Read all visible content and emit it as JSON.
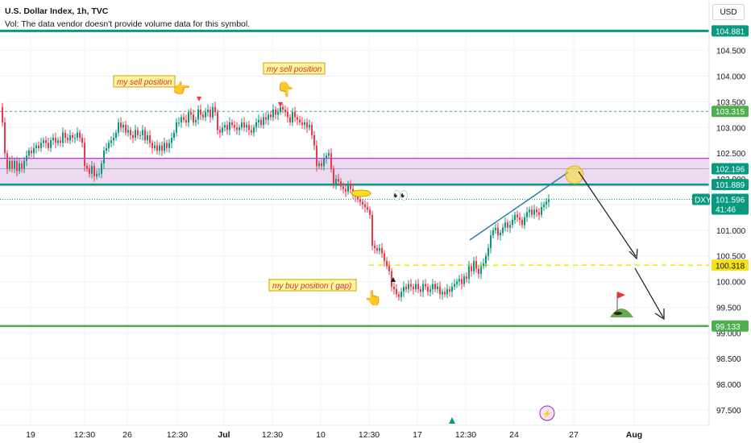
{
  "header": {
    "title": "U.S. Dollar Index, 1h, TVC",
    "volume_note": "Vol: The data vendor doesn't provide volume data for this symbol."
  },
  "currency_button": "USD",
  "price_axis": {
    "ticks": [
      "104.500",
      "104.000",
      "103.500",
      "103.000",
      "102.500",
      "102.000",
      "101.500",
      "101.000",
      "100.500",
      "100.000",
      "99.500",
      "99.000",
      "98.500",
      "98.000",
      "97.500"
    ]
  },
  "time_axis": {
    "labels": [
      "19",
      "12:30",
      "26",
      "12:30",
      "Jul",
      "12:30",
      "10",
      "12:30",
      "17",
      "12:30",
      "24",
      "27",
      "Aug"
    ]
  },
  "price_labels": {
    "top_line": "104.881",
    "dashed_resist": "103.315",
    "zone_top": "102.196",
    "zone_bottom": "101.889",
    "current_symbol": "DXY",
    "current_price": "101.596",
    "current_countdown": "41:46",
    "target_1": "100.318",
    "target_2": "99.133"
  },
  "annotations": {
    "sell_1": "my sell position",
    "sell_2": "my sell position",
    "buy": "my buy position ( gap)"
  },
  "colors": {
    "green_line": "#089981",
    "support_line": "#4caf50",
    "zone_fill": "#e9d4ef",
    "zone_border": "#b545c9",
    "candle_up": "#089981",
    "candle_down": "#f23645",
    "yellow": "#f5e01a",
    "trend_line": "#2a7fa8"
  },
  "chart_data": {
    "type": "candlestick",
    "symbol": "DXY",
    "timeframe": "1h",
    "ylim": [
      97.2,
      104.95
    ],
    "horizontal_levels": [
      104.881,
      103.315,
      102.196,
      101.889,
      100.318,
      99.133
    ],
    "highlight_zone": [
      101.85,
      102.4
    ],
    "close_path": [
      [
        0,
        103.4
      ],
      [
        3,
        103.1
      ],
      [
        6,
        102.5
      ],
      [
        9,
        102.2
      ],
      [
        12,
        102.35
      ],
      [
        15,
        102.2
      ],
      [
        18,
        102.35
      ],
      [
        21,
        102.15
      ],
      [
        24,
        102.3
      ],
      [
        27,
        102.2
      ],
      [
        30,
        102.35
      ],
      [
        33,
        102.45
      ],
      [
        36,
        102.55
      ],
      [
        39,
        102.5
      ],
      [
        42,
        102.6
      ],
      [
        45,
        102.65
      ],
      [
        48,
        102.6
      ],
      [
        51,
        102.7
      ],
      [
        54,
        102.75
      ],
      [
        57,
        102.7
      ],
      [
        60,
        102.6
      ],
      [
        63,
        102.75
      ],
      [
        66,
        102.8
      ],
      [
        69,
        102.7
      ],
      [
        72,
        102.75
      ],
      [
        75,
        102.7
      ],
      [
        78,
        102.9
      ],
      [
        81,
        102.8
      ],
      [
        84,
        102.75
      ],
      [
        87,
        102.85
      ],
      [
        90,
        102.8
      ],
      [
        93,
        102.8
      ],
      [
        96,
        102.9
      ],
      [
        99,
        102.8
      ],
      [
        102,
        102.7
      ],
      [
        105,
        102.25
      ],
      [
        108,
        102.2
      ],
      [
        111,
        102.1
      ],
      [
        114,
        102.25
      ],
      [
        117,
        102.05
      ],
      [
        120,
        102.1
      ],
      [
        123,
        102.1
      ],
      [
        126,
        102.3
      ],
      [
        129,
        102.55
      ],
      [
        132,
        102.6
      ],
      [
        135,
        102.7
      ],
      [
        138,
        102.75
      ],
      [
        141,
        102.8
      ],
      [
        144,
        102.9
      ],
      [
        147,
        103.1
      ],
      [
        150,
        103.0
      ],
      [
        153,
        103.05
      ],
      [
        156,
        102.9
      ],
      [
        159,
        102.95
      ],
      [
        162,
        102.85
      ],
      [
        165,
        102.8
      ],
      [
        168,
        102.95
      ],
      [
        171,
        102.85
      ],
      [
        174,
        102.85
      ],
      [
        177,
        102.95
      ],
      [
        180,
        102.75
      ],
      [
        183,
        102.85
      ],
      [
        186,
        102.7
      ],
      [
        189,
        102.6
      ],
      [
        192,
        102.65
      ],
      [
        195,
        102.55
      ],
      [
        198,
        102.65
      ],
      [
        201,
        102.55
      ],
      [
        204,
        102.7
      ],
      [
        207,
        102.6
      ],
      [
        210,
        102.7
      ],
      [
        213,
        102.8
      ],
      [
        216,
        102.9
      ],
      [
        219,
        103.1
      ],
      [
        222,
        103.1
      ],
      [
        225,
        103.2
      ],
      [
        228,
        103.15
      ],
      [
        231,
        103.1
      ],
      [
        234,
        103.3
      ],
      [
        237,
        103.25
      ],
      [
        240,
        103.1
      ],
      [
        243,
        103.15
      ],
      [
        246,
        103.35
      ],
      [
        249,
        103.25
      ],
      [
        252,
        103.2
      ],
      [
        255,
        103.3
      ],
      [
        258,
        103.35
      ],
      [
        261,
        103.2
      ],
      [
        264,
        103.4
      ],
      [
        267,
        103.3
      ],
      [
        270,
        102.95
      ],
      [
        273,
        102.9
      ],
      [
        276,
        103.0
      ],
      [
        279,
        103.05
      ],
      [
        282,
        102.95
      ],
      [
        285,
        103.1
      ],
      [
        288,
        103.05
      ],
      [
        291,
        103.0
      ],
      [
        294,
        102.95
      ],
      [
        297,
        103.0
      ],
      [
        300,
        103.1
      ],
      [
        303,
        103.0
      ],
      [
        306,
        103.05
      ],
      [
        309,
        102.95
      ],
      [
        312,
        102.9
      ],
      [
        315,
        103.0
      ],
      [
        318,
        103.1
      ],
      [
        321,
        103.15
      ],
      [
        324,
        103.05
      ],
      [
        327,
        103.2
      ],
      [
        330,
        103.15
      ],
      [
        333,
        103.25
      ],
      [
        336,
        103.2
      ],
      [
        339,
        103.35
      ],
      [
        342,
        103.25
      ],
      [
        345,
        103.3
      ],
      [
        348,
        103.4
      ],
      [
        351,
        103.35
      ],
      [
        354,
        103.3
      ],
      [
        357,
        103.2
      ],
      [
        360,
        103.1
      ],
      [
        363,
        103.3
      ],
      [
        366,
        103.2
      ],
      [
        369,
        103.15
      ],
      [
        372,
        103.1
      ],
      [
        375,
        103.05
      ],
      [
        378,
        103.1
      ],
      [
        381,
        103.0
      ],
      [
        384,
        103.05
      ],
      [
        387,
        102.85
      ],
      [
        390,
        102.65
      ],
      [
        393,
        102.25
      ],
      [
        396,
        102.3
      ],
      [
        399,
        102.25
      ],
      [
        402,
        102.4
      ],
      [
        405,
        102.45
      ],
      [
        408,
        102.5
      ],
      [
        411,
        102.2
      ],
      [
        414,
        101.9
      ],
      [
        417,
        102.0
      ],
      [
        420,
        101.95
      ],
      [
        423,
        101.85
      ],
      [
        426,
        101.8
      ],
      [
        429,
        101.75
      ],
      [
        432,
        101.9
      ],
      [
        435,
        101.8
      ],
      [
        438,
        101.7
      ],
      [
        441,
        101.65
      ],
      [
        444,
        101.6
      ],
      [
        447,
        101.55
      ],
      [
        450,
        101.5
      ],
      [
        453,
        101.45
      ],
      [
        456,
        101.4
      ],
      [
        459,
        101.3
      ],
      [
        462,
        100.7
      ],
      [
        465,
        100.65
      ],
      [
        468,
        100.6
      ],
      [
        471,
        100.65
      ],
      [
        474,
        100.55
      ],
      [
        477,
        100.4
      ],
      [
        480,
        100.3
      ],
      [
        483,
        100.2
      ],
      [
        486,
        99.9
      ],
      [
        489,
        99.85
      ],
      [
        492,
        99.75
      ],
      [
        495,
        99.7
      ],
      [
        498,
        99.8
      ],
      [
        501,
        99.9
      ],
      [
        504,
        99.85
      ],
      [
        507,
        99.95
      ],
      [
        510,
        99.9
      ],
      [
        513,
        99.85
      ],
      [
        516,
        99.95
      ],
      [
        519,
        99.85
      ],
      [
        522,
        99.8
      ],
      [
        525,
        99.95
      ],
      [
        528,
        99.9
      ],
      [
        531,
        99.8
      ],
      [
        534,
        99.85
      ],
      [
        537,
        99.95
      ],
      [
        540,
        99.85
      ],
      [
        543,
        99.9
      ],
      [
        546,
        99.75
      ],
      [
        549,
        99.8
      ],
      [
        552,
        99.75
      ],
      [
        555,
        99.85
      ],
      [
        558,
        99.8
      ],
      [
        561,
        99.9
      ],
      [
        564,
        99.95
      ],
      [
        567,
        100.0
      ],
      [
        570,
        100.05
      ],
      [
        573,
        99.95
      ],
      [
        576,
        100.1
      ],
      [
        579,
        100.05
      ],
      [
        582,
        100.3
      ],
      [
        585,
        100.2
      ],
      [
        588,
        100.4
      ],
      [
        591,
        100.25
      ],
      [
        594,
        100.15
      ],
      [
        597,
        100.3
      ],
      [
        600,
        100.35
      ],
      [
        603,
        100.5
      ],
      [
        606,
        100.65
      ],
      [
        609,
        100.9
      ],
      [
        612,
        101.0
      ],
      [
        615,
        101.05
      ],
      [
        618,
        100.9
      ],
      [
        621,
        100.95
      ],
      [
        624,
        101.05
      ],
      [
        627,
        101.15
      ],
      [
        630,
        101.05
      ],
      [
        633,
        101.1
      ],
      [
        636,
        101.2
      ],
      [
        639,
        101.3
      ],
      [
        642,
        101.25
      ],
      [
        645,
        101.2
      ],
      [
        648,
        101.1
      ],
      [
        651,
        101.25
      ],
      [
        654,
        101.35
      ],
      [
        657,
        101.4
      ],
      [
        660,
        101.3
      ],
      [
        663,
        101.4
      ],
      [
        666,
        101.35
      ],
      [
        669,
        101.3
      ],
      [
        672,
        101.45
      ],
      [
        675,
        101.5
      ],
      [
        678,
        101.55
      ],
      [
        681,
        101.6
      ]
    ]
  }
}
